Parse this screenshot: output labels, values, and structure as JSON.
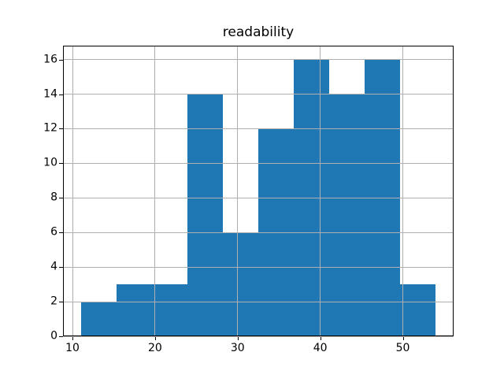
{
  "chart_data": {
    "type": "bar",
    "subtype": "histogram",
    "title": "readability",
    "xlabel": "",
    "ylabel": "",
    "bin_edges": [
      11,
      15.3,
      19.6,
      23.9,
      28.2,
      32.5,
      36.8,
      41.1,
      45.4,
      49.7,
      54
    ],
    "values": [
      2,
      3,
      3,
      14,
      6,
      12,
      16,
      14,
      16,
      3
    ],
    "xticks": [
      10,
      20,
      30,
      40,
      50
    ],
    "yticks": [
      0,
      2,
      4,
      6,
      8,
      10,
      12,
      14,
      16
    ],
    "xlim": [
      8.85,
      56.15
    ],
    "ylim": [
      0,
      16.8
    ],
    "grid": true,
    "grid_over_bars": true,
    "legend_position": "none",
    "bar_color": "#1f77b4",
    "grid_color": "#b0b0b0",
    "axis_color": "#000000",
    "background_color": "#ffffff"
  }
}
